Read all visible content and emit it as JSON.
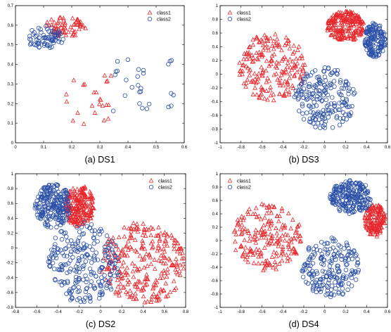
{
  "colors": {
    "class1": "#e8262b",
    "class2": "#2a4fa8",
    "axis": "#000000"
  },
  "chart_data": [
    {
      "id": "ds1",
      "type": "scatter",
      "caption": "(a) DS1",
      "xlim": [
        0,
        0.6
      ],
      "ylim": [
        0,
        0.7
      ],
      "xticks": [
        "0",
        "0.1",
        "0.2",
        "0.3",
        "0.4",
        "0.5",
        "0.6"
      ],
      "yticks": [
        "0",
        "0.1",
        "0.2",
        "0.3",
        "0.4",
        "0.5",
        "0.6",
        "0.7"
      ],
      "legend": [
        "class1",
        "class2"
      ],
      "legend_position": "top-right",
      "series": [
        {
          "name": "class1",
          "marker": "triangle",
          "clusters": [
            {
              "shape": "ellipse",
              "cx": 0.175,
              "cy": 0.59,
              "rx": 0.075,
              "ry": 0.05,
              "n": 70
            },
            {
              "shape": "box",
              "x0": 0.18,
              "x1": 0.34,
              "y0": 0.08,
              "y1": 0.36,
              "n": 24
            }
          ]
        },
        {
          "name": "class2",
          "marker": "circle",
          "clusters": [
            {
              "shape": "ellipse",
              "cx": 0.105,
              "cy": 0.535,
              "rx": 0.065,
              "ry": 0.06,
              "n": 70
            },
            {
              "shape": "box",
              "x0": 0.34,
              "x1": 0.57,
              "y0": 0.16,
              "y1": 0.43,
              "n": 28
            }
          ]
        }
      ]
    },
    {
      "id": "ds3",
      "type": "scatter",
      "caption": "(b) DS3",
      "xlim": [
        -1,
        0.6
      ],
      "ylim": [
        -1,
        1
      ],
      "xticks": [
        "-1",
        "-0.8",
        "-0.6",
        "-0.4",
        "-0.2",
        "0",
        "0.2",
        "0.4",
        "0.6"
      ],
      "yticks": [
        "-1",
        "-0.8",
        "-0.6",
        "-0.4",
        "-0.2",
        "0",
        "0.2",
        "0.4",
        "0.6",
        "0.8",
        "1"
      ],
      "legend": [
        "class1",
        "class2"
      ],
      "legend_position": "top-left",
      "series": [
        {
          "name": "class1",
          "marker": "triangle",
          "clusters": [
            {
              "shape": "ellipse",
              "cx": -0.5,
              "cy": 0.1,
              "rx": 0.32,
              "ry": 0.5,
              "n": 200
            },
            {
              "shape": "ellipse",
              "cx": 0.2,
              "cy": 0.7,
              "rx": 0.18,
              "ry": 0.22,
              "n": 220
            }
          ]
        },
        {
          "name": "class2",
          "marker": "circle",
          "clusters": [
            {
              "shape": "ellipse",
              "cx": 0.0,
              "cy": -0.35,
              "rx": 0.3,
              "ry": 0.45,
              "n": 200
            },
            {
              "shape": "ellipse",
              "cx": 0.48,
              "cy": 0.5,
              "rx": 0.1,
              "ry": 0.25,
              "n": 150
            }
          ]
        }
      ]
    },
    {
      "id": "ds2",
      "type": "scatter",
      "caption": "(c) DS2",
      "xlim": [
        -0.8,
        0.8
      ],
      "ylim": [
        -0.8,
        1
      ],
      "xticks": [
        "-0.8",
        "-0.6",
        "-0.4",
        "-0.2",
        "0",
        "0.2",
        "0.4",
        "0.6",
        "0.8"
      ],
      "yticks": [
        "-0.8",
        "-0.6",
        "-0.4",
        "-0.2",
        "0",
        "0.2",
        "0.4",
        "0.6",
        "0.8",
        "1"
      ],
      "legend": [
        "class1",
        "class2"
      ],
      "legend_position": "top-right",
      "series": [
        {
          "name": "class1",
          "marker": "triangle",
          "clusters": [
            {
              "shape": "ellipse",
              "cx": 0.4,
              "cy": -0.2,
              "rx": 0.4,
              "ry": 0.55,
              "n": 280
            },
            {
              "shape": "ellipse",
              "cx": -0.2,
              "cy": 0.57,
              "rx": 0.14,
              "ry": 0.28,
              "n": 220
            }
          ]
        },
        {
          "name": "class2",
          "marker": "circle",
          "clusters": [
            {
              "shape": "ellipse",
              "cx": -0.15,
              "cy": -0.2,
              "rx": 0.35,
              "ry": 0.55,
              "n": 240
            },
            {
              "shape": "ellipse",
              "cx": -0.45,
              "cy": 0.57,
              "rx": 0.17,
              "ry": 0.3,
              "n": 220
            }
          ]
        }
      ]
    },
    {
      "id": "ds4",
      "type": "scatter",
      "caption": "(d) DS4",
      "xlim": [
        -1,
        0.6
      ],
      "ylim": [
        -1,
        1
      ],
      "xticks": [
        "-1",
        "-0.8",
        "-0.6",
        "-0.4",
        "-0.2",
        "0",
        "0.2",
        "0.4",
        "0.6"
      ],
      "yticks": [
        "-1",
        "-0.8",
        "-0.6",
        "-0.4",
        "-0.2",
        "0",
        "0.2",
        "0.4",
        "0.6",
        "0.8",
        "1"
      ],
      "legend": [
        "class1",
        "class2"
      ],
      "legend_position": "top-left",
      "series": [
        {
          "name": "class1",
          "marker": "triangle",
          "clusters": [
            {
              "shape": "ellipse",
              "cx": -0.55,
              "cy": 0.05,
              "rx": 0.33,
              "ry": 0.5,
              "n": 200
            },
            {
              "shape": "ellipse",
              "cx": 0.48,
              "cy": 0.3,
              "rx": 0.1,
              "ry": 0.25,
              "n": 150
            }
          ]
        },
        {
          "name": "class2",
          "marker": "circle",
          "clusters": [
            {
              "shape": "ellipse",
              "cx": 0.05,
              "cy": -0.4,
              "rx": 0.28,
              "ry": 0.45,
              "n": 200
            },
            {
              "shape": "ellipse",
              "cx": 0.25,
              "cy": 0.65,
              "rx": 0.2,
              "ry": 0.25,
              "n": 220
            }
          ]
        }
      ]
    }
  ]
}
